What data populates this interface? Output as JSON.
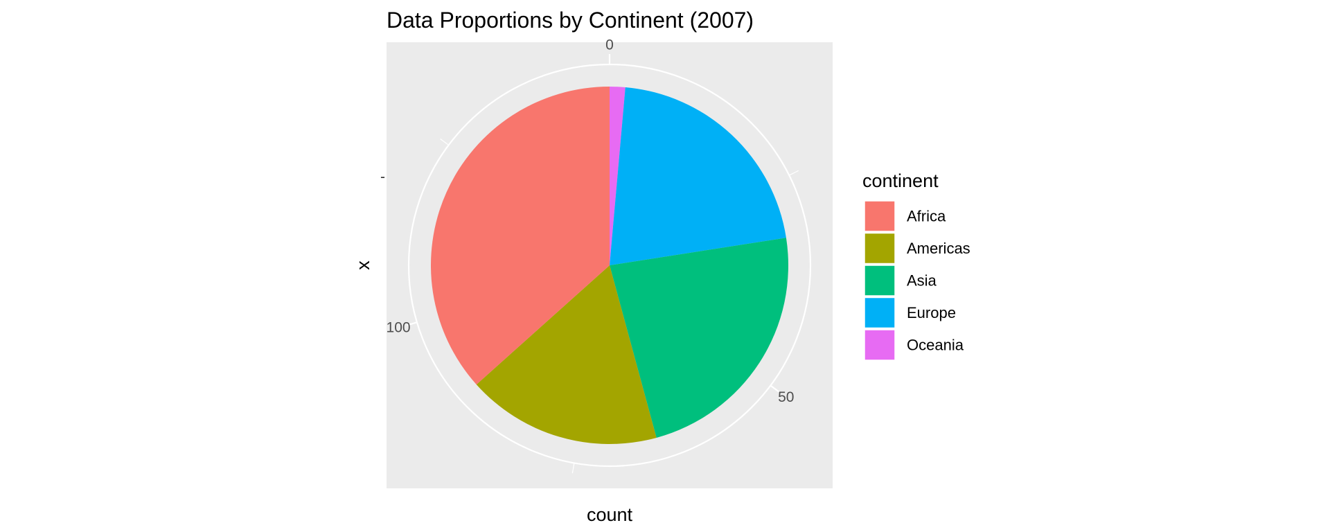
{
  "chart_data": {
    "type": "pie",
    "title": "Data Proportions by Continent (2007)",
    "xlabel": "count",
    "ylabel": "x",
    "y_tick_label": "-",
    "legend_title": "continent",
    "legend_position": "right",
    "grid": true,
    "theta_ticks": [
      {
        "value": 0,
        "label": "0"
      },
      {
        "value": 50,
        "label": "50"
      },
      {
        "value": 100,
        "label": "100"
      }
    ],
    "theta_range": [
      0,
      142
    ],
    "categories": [
      "Africa",
      "Americas",
      "Asia",
      "Europe",
      "Oceania"
    ],
    "values": [
      52,
      25,
      33,
      30,
      2
    ],
    "colors": [
      "#F8766D",
      "#A3A500",
      "#00BF7D",
      "#00B0F6",
      "#E76BF3"
    ]
  }
}
